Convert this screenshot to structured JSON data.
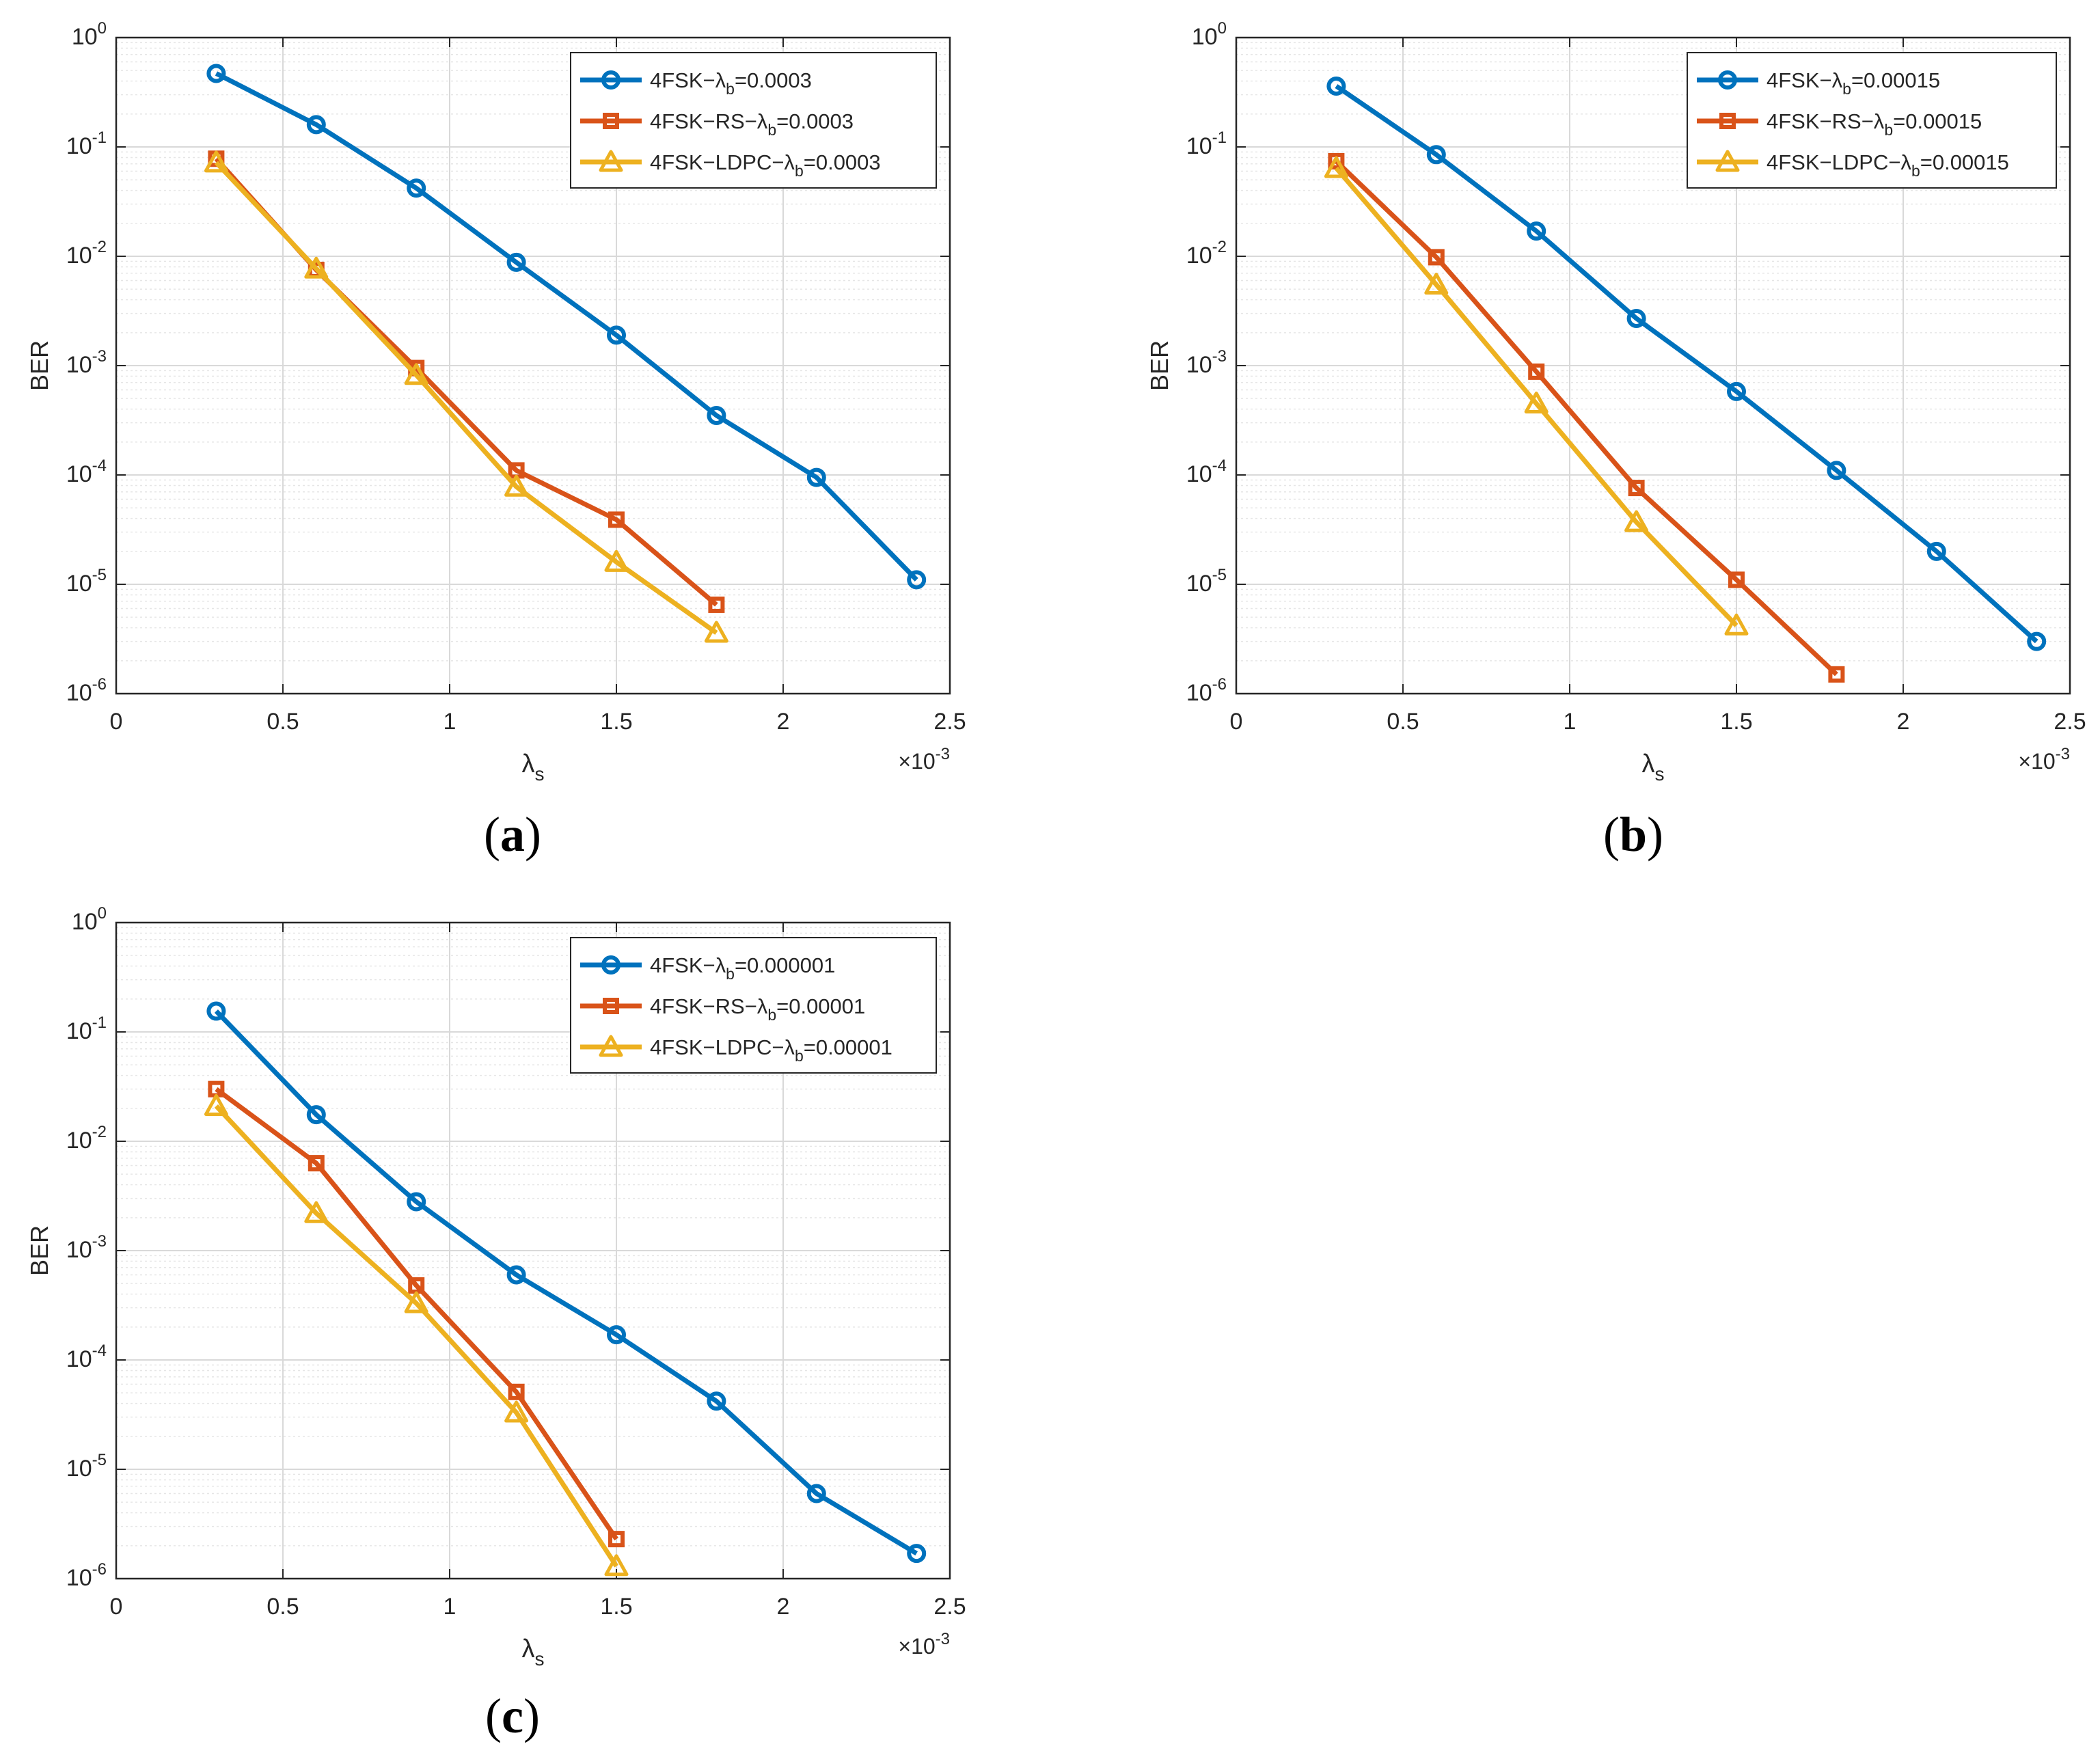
{
  "figure": {
    "panels": [
      {
        "label_open": "(",
        "label_letter": "a",
        "label_close": ")"
      },
      {
        "label_open": "(",
        "label_letter": "b",
        "label_close": ")"
      },
      {
        "label_open": "(",
        "label_letter": "c",
        "label_close": ")"
      }
    ]
  },
  "chart_data": [
    {
      "type": "line",
      "title": "",
      "xlabel": "λ",
      "xlabel_sub": "s",
      "ylabel": "BER",
      "yscale": "log",
      "xlim": [
        0,
        0.0025
      ],
      "ylim": [
        1e-06,
        1
      ],
      "x_tick_labels": [
        "0",
        "0.5",
        "1",
        "1.5",
        "2",
        "2.5"
      ],
      "x_multiplier_prefix": "×10",
      "x_multiplier_exp": "-3",
      "y_tick_exponents": [
        "0",
        "-1",
        "-2",
        "-3",
        "-4",
        "-5",
        "-6"
      ],
      "y_tick_base": "10",
      "grid": true,
      "legend_position": "top-right",
      "series": [
        {
          "name": "4FSK−λb=0.0003",
          "legend_pre": "4FSK−λ",
          "legend_sub": "b",
          "legend_post": "=0.0003",
          "color": "#0072BD",
          "marker": "circle",
          "x": [
            0.0003,
            0.0006,
            0.0009,
            0.0012,
            0.0015,
            0.0018,
            0.0021,
            0.0024
          ],
          "values": [
            0.47,
            0.16,
            0.042,
            0.0088,
            0.0019,
            0.00035,
            9.5e-05,
            1.1e-05
          ]
        },
        {
          "name": "4FSK−RS−λb=0.0003",
          "legend_pre": "4FSK−RS−λ",
          "legend_sub": "b",
          "legend_post": "=0.0003",
          "color": "#D95319",
          "marker": "square",
          "x": [
            0.0003,
            0.0006,
            0.0009,
            0.0012,
            0.0015,
            0.0018
          ],
          "values": [
            0.078,
            0.0075,
            0.00095,
            0.00011,
            3.9e-05,
            6.5e-06
          ]
        },
        {
          "name": "4FSK−LDPC−λb=0.0003",
          "legend_pre": "4FSK−LDPC−λ",
          "legend_sub": "b",
          "legend_post": "=0.0003",
          "color": "#EDB120",
          "marker": "triangle",
          "x": [
            0.0003,
            0.0006,
            0.0009,
            0.0012,
            0.0015,
            0.0018
          ],
          "values": [
            0.072,
            0.0077,
            0.00082,
            7.8e-05,
            1.6e-05,
            3.6e-06
          ]
        }
      ]
    },
    {
      "type": "line",
      "title": "",
      "xlabel": "λ",
      "xlabel_sub": "s",
      "ylabel": "BER",
      "yscale": "log",
      "xlim": [
        0,
        0.0025
      ],
      "ylim": [
        1e-06,
        1
      ],
      "x_tick_labels": [
        "0",
        "0.5",
        "1",
        "1.5",
        "2",
        "2.5"
      ],
      "x_multiplier_prefix": "×10",
      "x_multiplier_exp": "-3",
      "y_tick_exponents": [
        "0",
        "-1",
        "-2",
        "-3",
        "-4",
        "-5",
        "-6"
      ],
      "y_tick_base": "10",
      "grid": true,
      "legend_position": "top-right",
      "series": [
        {
          "name": "4FSK−λb=0.00015",
          "legend_pre": "4FSK−λ",
          "legend_sub": "b",
          "legend_post": "=0.00015",
          "color": "#0072BD",
          "marker": "circle",
          "x": [
            0.0003,
            0.0006,
            0.0009,
            0.0012,
            0.0015,
            0.0018,
            0.0021,
            0.0024
          ],
          "values": [
            0.36,
            0.085,
            0.017,
            0.0027,
            0.00058,
            0.00011,
            2e-05,
            3e-06
          ]
        },
        {
          "name": "4FSK−RS−λb=0.00015",
          "legend_pre": "4FSK−RS−λ",
          "legend_sub": "b",
          "legend_post": "=0.00015",
          "color": "#D95319",
          "marker": "square",
          "x": [
            0.0003,
            0.0006,
            0.0009,
            0.0012,
            0.0015,
            0.0018
          ],
          "values": [
            0.074,
            0.0098,
            0.00088,
            7.6e-05,
            1.1e-05,
            1.5e-06
          ]
        },
        {
          "name": "4FSK−LDPC−λb=0.00015",
          "legend_pre": "4FSK−LDPC−λ",
          "legend_sub": "b",
          "legend_post": "=0.00015",
          "color": "#EDB120",
          "marker": "triangle",
          "x": [
            0.0003,
            0.0006,
            0.0009,
            0.0012,
            0.0015
          ],
          "values": [
            0.064,
            0.0055,
            0.00045,
            3.7e-05,
            4.2e-06
          ]
        }
      ]
    },
    {
      "type": "line",
      "title": "",
      "xlabel": "λ",
      "xlabel_sub": "s",
      "ylabel": "BER",
      "yscale": "log",
      "xlim": [
        0,
        0.0025
      ],
      "ylim": [
        1e-06,
        1
      ],
      "x_tick_labels": [
        "0",
        "0.5",
        "1",
        "1.5",
        "2",
        "2.5"
      ],
      "x_multiplier_prefix": "×10",
      "x_multiplier_exp": "-3",
      "y_tick_exponents": [
        "0",
        "-1",
        "-2",
        "-3",
        "-4",
        "-5",
        "-6"
      ],
      "y_tick_base": "10",
      "grid": true,
      "legend_position": "top-right",
      "series": [
        {
          "name": "4FSK−λb=0.000001",
          "legend_pre": "4FSK−λ",
          "legend_sub": "b",
          "legend_post": "=0.000001",
          "color": "#0072BD",
          "marker": "circle",
          "x": [
            0.0003,
            0.0006,
            0.0009,
            0.0012,
            0.0015,
            0.0018,
            0.0021,
            0.0024
          ],
          "values": [
            0.155,
            0.0175,
            0.0028,
            0.0006,
            0.00017,
            4.2e-05,
            6e-06,
            1.7e-06
          ]
        },
        {
          "name": "4FSK−RS−λb=0.00001",
          "legend_pre": "4FSK−RS−λ",
          "legend_sub": "b",
          "legend_post": "=0.00001",
          "color": "#D95319",
          "marker": "square",
          "x": [
            0.0003,
            0.0006,
            0.0009,
            0.0012,
            0.0015
          ],
          "values": [
            0.03,
            0.0063,
            0.00048,
            5.1e-05,
            2.3e-06
          ]
        },
        {
          "name": "4FSK−LDPC−λb=0.00001",
          "legend_pre": "4FSK−LDPC−λ",
          "legend_sub": "b",
          "legend_post": "=0.00001",
          "color": "#EDB120",
          "marker": "triangle",
          "x": [
            0.0003,
            0.0006,
            0.0009,
            0.0012,
            0.0015
          ],
          "values": [
            0.021,
            0.0022,
            0.00033,
            3.3e-05,
            1.3e-06
          ]
        }
      ]
    }
  ]
}
